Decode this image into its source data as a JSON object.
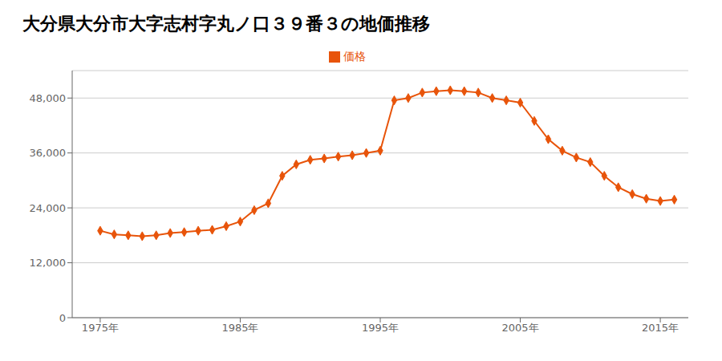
{
  "chart_data": {
    "type": "line",
    "title": "大分県大分市大字志村字丸ノ口３９番３の地価推移",
    "x": [
      1975,
      1976,
      1977,
      1978,
      1979,
      1980,
      1981,
      1982,
      1983,
      1984,
      1985,
      1986,
      1987,
      1988,
      1989,
      1990,
      1991,
      1992,
      1993,
      1994,
      1995,
      1996,
      1997,
      1998,
      1999,
      2000,
      2001,
      2002,
      2003,
      2004,
      2005,
      2006,
      2007,
      2008,
      2009,
      2010,
      2011,
      2012,
      2013,
      2014,
      2015,
      2016
    ],
    "series": [
      {
        "name": "価格",
        "color": "#E8540A",
        "marker": "diamond",
        "values": [
          19000,
          18200,
          18000,
          17800,
          18000,
          18500,
          18700,
          19000,
          19200,
          20000,
          21000,
          23500,
          25000,
          31000,
          33500,
          34500,
          34800,
          35200,
          35500,
          36000,
          36500,
          47500,
          48000,
          49200,
          49500,
          49700,
          49500,
          49200,
          48000,
          47500,
          47000,
          43000,
          39000,
          36500,
          35000,
          34000,
          31000,
          28500,
          27000,
          26000,
          25500,
          25800
        ]
      }
    ],
    "xlim": [
      1973,
      2017
    ],
    "ylim": [
      0,
      54000
    ],
    "xticks": [
      {
        "value": 1975,
        "label": "1975年"
      },
      {
        "value": 1985,
        "label": "1985年"
      },
      {
        "value": 1995,
        "label": "1995年"
      },
      {
        "value": 2005,
        "label": "2005年"
      },
      {
        "value": 2015,
        "label": "2015年"
      }
    ],
    "yticks": [
      0,
      {
        "value": 12000,
        "label": "12,000"
      },
      {
        "value": 24000,
        "label": "24,000"
      },
      {
        "value": 36000,
        "label": "36,000"
      },
      {
        "value": 48000,
        "label": "48,000"
      }
    ],
    "grid": true,
    "legend": "top"
  }
}
